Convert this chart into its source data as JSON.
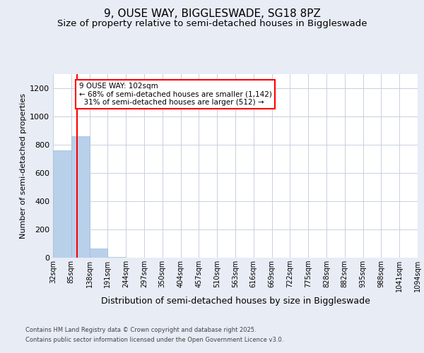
{
  "title": "9, OUSE WAY, BIGGLESWADE, SG18 8PZ",
  "subtitle": "Size of property relative to semi-detached houses in Biggleswade",
  "xlabel": "Distribution of semi-detached houses by size in Biggleswade",
  "ylabel": "Number of semi-detached properties",
  "footer_line1": "Contains HM Land Registry data © Crown copyright and database right 2025.",
  "footer_line2": "Contains public sector information licensed under the Open Government Licence v3.0.",
  "bins": [
    "32sqm",
    "85sqm",
    "138sqm",
    "191sqm",
    "244sqm",
    "297sqm",
    "350sqm",
    "404sqm",
    "457sqm",
    "510sqm",
    "563sqm",
    "616sqm",
    "669sqm",
    "722sqm",
    "775sqm",
    "828sqm",
    "882sqm",
    "935sqm",
    "988sqm",
    "1041sqm",
    "1094sqm"
  ],
  "values": [
    760,
    860,
    65,
    5,
    0,
    0,
    0,
    0,
    0,
    0,
    0,
    0,
    0,
    0,
    0,
    0,
    0,
    0,
    0,
    0
  ],
  "bar_color": "#b8d0ea",
  "bar_edge_color": "#a0bcd8",
  "property_line_x": 1.0,
  "property_line_color": "red",
  "annotation_text": "9 OUSE WAY: 102sqm\n← 68% of semi-detached houses are smaller (1,142)\n  31% of semi-detached houses are larger (512) →",
  "annotation_box_color": "white",
  "annotation_box_edge": "red",
  "ylim": [
    0,
    1300
  ],
  "yticks": [
    0,
    200,
    400,
    600,
    800,
    1000,
    1200
  ],
  "background_color": "#e8ecf5",
  "plot_background": "white",
  "grid_color": "#c8d0e0",
  "title_fontsize": 11,
  "subtitle_fontsize": 9.5,
  "ylabel_fontsize": 8,
  "xlabel_fontsize": 9,
  "tick_fontsize": 7,
  "footer_fontsize": 6,
  "annot_fontsize": 7.5
}
